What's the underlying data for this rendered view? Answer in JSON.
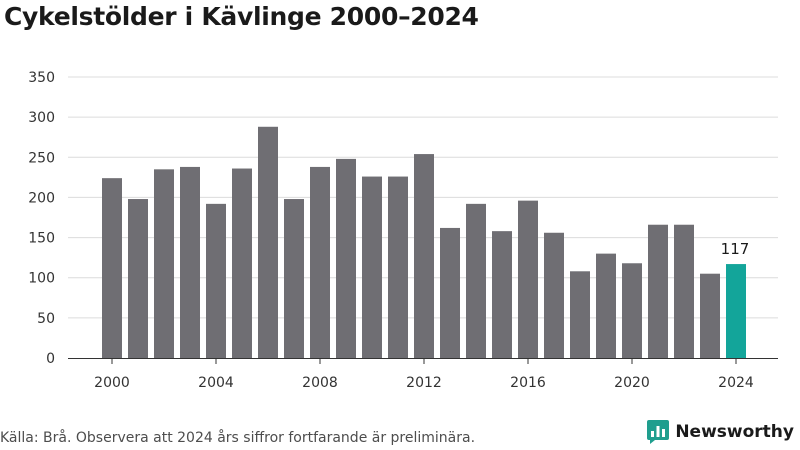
{
  "chart_data": {
    "type": "bar",
    "title": "Cykelstölder i Kävlinge 2000–2024",
    "categories": [
      "2000",
      "2001",
      "2002",
      "2003",
      "2004",
      "2005",
      "2006",
      "2007",
      "2008",
      "2009",
      "2010",
      "2011",
      "2012",
      "2013",
      "2014",
      "2015",
      "2016",
      "2017",
      "2018",
      "2019",
      "2020",
      "2021",
      "2022",
      "2023",
      "2024"
    ],
    "values": [
      224,
      198,
      235,
      238,
      192,
      236,
      288,
      198,
      238,
      248,
      226,
      226,
      254,
      162,
      192,
      158,
      196,
      156,
      108,
      130,
      118,
      166,
      166,
      105,
      117
    ],
    "x_tick_labels": [
      "2000",
      "2004",
      "2008",
      "2012",
      "2016",
      "2020",
      "2024"
    ],
    "y_ticks": [
      0,
      50,
      100,
      150,
      200,
      250,
      300,
      350
    ],
    "ylim": [
      0,
      350
    ],
    "xlabel": "",
    "ylabel": "",
    "grid": true,
    "highlight": {
      "category": "2024",
      "label": "117"
    },
    "colors": {
      "bar": "#6f6e73",
      "highlight": "#13a59a",
      "grid": "#dcdcdc",
      "axis": "#333333"
    }
  },
  "footer": {
    "source": "Källa: Brå. Observera att 2024 års siffror fortfarande är preliminära.",
    "logo_text": "Newsworthy",
    "logo_icon": "bar-chart-icon",
    "logo_color": "#1f9e8e"
  }
}
